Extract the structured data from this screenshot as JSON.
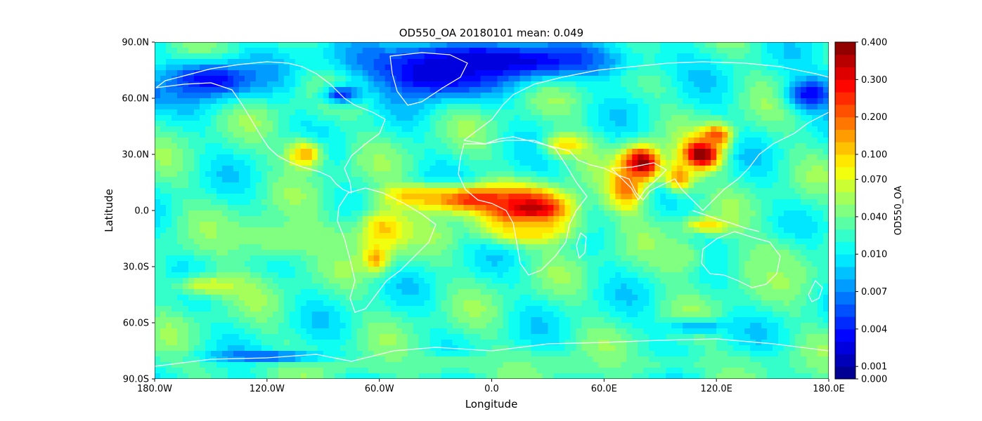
{
  "chart_data": {
    "type": "heatmap",
    "title": "OD550_OA 20180101 mean: 0.049",
    "xlabel": "Longitude",
    "ylabel": "Latitude",
    "xlim": [
      -180,
      180
    ],
    "ylim": [
      -90,
      90
    ],
    "x_ticks": [
      {
        "value": -180,
        "label": "180.0W"
      },
      {
        "value": -120,
        "label": "120.0W"
      },
      {
        "value": -60,
        "label": "60.0W"
      },
      {
        "value": 0,
        "label": "0.0"
      },
      {
        "value": 60,
        "label": "60.0E"
      },
      {
        "value": 120,
        "label": "120.0E"
      },
      {
        "value": 180,
        "label": "180.0E"
      }
    ],
    "y_ticks": [
      {
        "value": 90,
        "label": "90.0N"
      },
      {
        "value": 60,
        "label": "60.0N"
      },
      {
        "value": 30,
        "label": "30.0N"
      },
      {
        "value": 0,
        "label": "0.0"
      },
      {
        "value": -30,
        "label": "30.0S"
      },
      {
        "value": -60,
        "label": "60.0S"
      },
      {
        "value": -90,
        "label": "90.0S"
      }
    ],
    "colorbar": {
      "label": "OD550_OA",
      "colormap": "jet",
      "levels": 27,
      "ticks": [
        {
          "level": 0,
          "label": "0.000"
        },
        {
          "level": 1,
          "label": "0.001"
        },
        {
          "level": 4,
          "label": "0.004"
        },
        {
          "level": 7,
          "label": "0.007"
        },
        {
          "level": 10,
          "label": "0.010"
        },
        {
          "level": 13,
          "label": "0.040"
        },
        {
          "level": 16,
          "label": "0.070"
        },
        {
          "level": 18,
          "label": "0.100"
        },
        {
          "level": 21,
          "label": "0.200"
        },
        {
          "level": 24,
          "label": "0.300"
        },
        {
          "level": 27,
          "label": "0.400"
        }
      ]
    },
    "field": {
      "background_level": 11.5,
      "features": [
        {
          "lon": 20,
          "lat": 0,
          "rx": 22,
          "ry": 10,
          "level": 28
        },
        {
          "lon": -10,
          "lat": 6,
          "rx": 30,
          "ry": 7,
          "level": 23
        },
        {
          "lon": -40,
          "lat": 8,
          "rx": 18,
          "ry": 5,
          "level": 19
        },
        {
          "lon": 20,
          "lat": -10,
          "rx": 25,
          "ry": 8,
          "level": 18
        },
        {
          "lon": 80,
          "lat": 25,
          "rx": 10,
          "ry": 9,
          "level": 28
        },
        {
          "lon": 72,
          "lat": 12,
          "rx": 10,
          "ry": 12,
          "level": 21
        },
        {
          "lon": 112,
          "lat": 30,
          "rx": 10,
          "ry": 8,
          "level": 28
        },
        {
          "lon": 120,
          "lat": 40,
          "rx": 8,
          "ry": 6,
          "level": 22
        },
        {
          "lon": 100,
          "lat": 18,
          "rx": 8,
          "ry": 8,
          "level": 20
        },
        {
          "lon": -58,
          "lat": -10,
          "rx": 14,
          "ry": 12,
          "level": 19
        },
        {
          "lon": -62,
          "lat": -25,
          "rx": 7,
          "ry": 8,
          "level": 20
        },
        {
          "lon": -100,
          "lat": 30,
          "rx": 10,
          "ry": 8,
          "level": 19
        },
        {
          "lon": 115,
          "lat": -8,
          "rx": 12,
          "ry": 4,
          "level": 18
        },
        {
          "lon": 40,
          "lat": 35,
          "rx": 12,
          "ry": 6,
          "level": 18
        },
        {
          "lon": 0,
          "lat": 80,
          "rx": 70,
          "ry": 10,
          "level": 2
        },
        {
          "lon": -30,
          "lat": 72,
          "rx": 30,
          "ry": 12,
          "level": 2
        },
        {
          "lon": -150,
          "lat": 70,
          "rx": 25,
          "ry": 10,
          "level": 3
        },
        {
          "lon": 170,
          "lat": 62,
          "rx": 12,
          "ry": 8,
          "level": 3
        },
        {
          "lon": -80,
          "lat": 62,
          "rx": 10,
          "ry": 5,
          "level": 4
        },
        {
          "lon": 0,
          "lat": -82,
          "rx": 160,
          "ry": 6,
          "level": 13
        },
        {
          "lon": -120,
          "lat": -78,
          "rx": 30,
          "ry": 3,
          "level": 5
        },
        {
          "lon": 110,
          "lat": -62,
          "rx": 20,
          "ry": 4,
          "level": 8
        },
        {
          "lon": -150,
          "lat": -40,
          "rx": 20,
          "ry": 6,
          "level": 16
        },
        {
          "lon": -110,
          "lat": -15,
          "rx": 40,
          "ry": 12,
          "level": 14
        },
        {
          "lon": 150,
          "lat": -30,
          "rx": 20,
          "ry": 15,
          "level": 14
        },
        {
          "lon": 100,
          "lat": -25,
          "rx": 15,
          "ry": 10,
          "level": 14
        }
      ]
    }
  }
}
